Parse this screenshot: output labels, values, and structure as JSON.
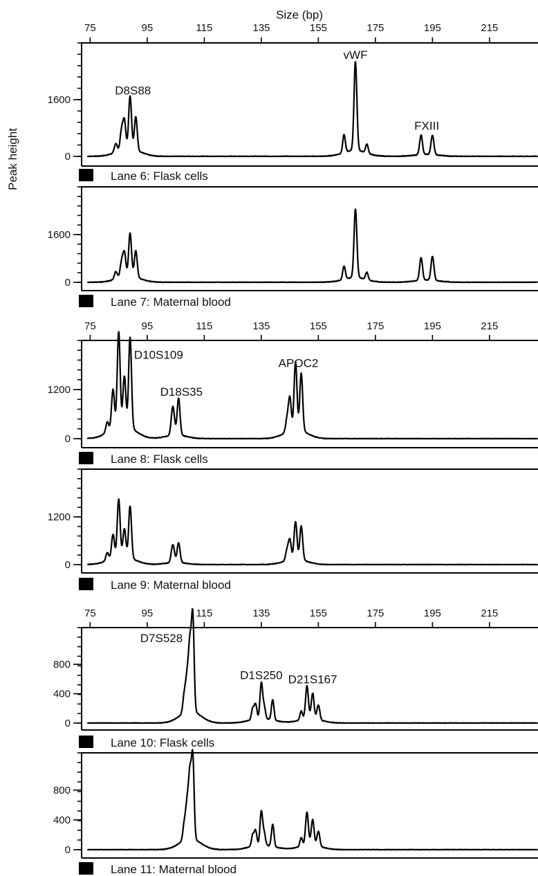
{
  "chart_data": {
    "type": "line",
    "title": "Size (bp)",
    "ylabel": "Peak height",
    "xlim": [
      72,
      232
    ],
    "x_ticks": [
      75,
      95,
      115,
      135,
      155,
      175,
      195,
      215
    ],
    "x_tick_labels": [
      "75",
      "95",
      "115",
      "135",
      "155",
      "175",
      "195",
      "215"
    ],
    "legend": "none",
    "panels": [
      {
        "lane": "Lane 6: Flask cells",
        "ylim": [
          0,
          3200
        ],
        "ytick_labels": [
          {
            "value": 0,
            "label": "0"
          },
          {
            "value": 1600,
            "label": "1600"
          }
        ],
        "show_top_axis": true,
        "peak_labels": [
          {
            "text": "D8S88",
            "x": 90,
            "y": 1750
          },
          {
            "text": "vWF",
            "x": 168,
            "y": 2750
          },
          {
            "text": "FXIII",
            "x": 193,
            "y": 750
          }
        ],
        "peaks": [
          {
            "x": 84,
            "h": 250,
            "w": 0.5
          },
          {
            "x": 86,
            "h": 550,
            "w": 0.5
          },
          {
            "x": 87,
            "h": 800,
            "w": 0.5
          },
          {
            "x": 89,
            "h": 1500,
            "w": 0.5
          },
          {
            "x": 91,
            "h": 950,
            "w": 0.5
          },
          {
            "x": 164,
            "h": 500,
            "w": 0.45
          },
          {
            "x": 168,
            "h": 2500,
            "w": 0.5
          },
          {
            "x": 172,
            "h": 250,
            "w": 0.45
          },
          {
            "x": 191,
            "h": 550,
            "w": 0.5
          },
          {
            "x": 195,
            "h": 550,
            "w": 0.5
          }
        ]
      },
      {
        "lane": "Lane 7: Maternal blood",
        "ylim": [
          0,
          3200
        ],
        "ytick_labels": [
          {
            "value": 0,
            "label": "0"
          },
          {
            "value": 1600,
            "label": "1600"
          }
        ],
        "show_top_axis": false,
        "peak_labels": [],
        "peaks": [
          {
            "x": 84,
            "h": 250,
            "w": 0.5
          },
          {
            "x": 86,
            "h": 500,
            "w": 0.5
          },
          {
            "x": 87,
            "h": 800,
            "w": 0.5
          },
          {
            "x": 89,
            "h": 1450,
            "w": 0.5
          },
          {
            "x": 91,
            "h": 900,
            "w": 0.5
          },
          {
            "x": 164,
            "h": 450,
            "w": 0.45
          },
          {
            "x": 168,
            "h": 2300,
            "w": 0.5
          },
          {
            "x": 172,
            "h": 250,
            "w": 0.45
          },
          {
            "x": 191,
            "h": 750,
            "w": 0.5
          },
          {
            "x": 195,
            "h": 800,
            "w": 0.5
          }
        ]
      },
      {
        "lane": "Lane 8: Flask cells",
        "ylim": [
          0,
          2400
        ],
        "ytick_labels": [
          {
            "value": 0,
            "label": "0"
          },
          {
            "value": 1200,
            "label": "1200"
          }
        ],
        "show_top_axis": true,
        "peak_labels": [
          {
            "text": "D10S109",
            "x": 99,
            "y": 1950
          },
          {
            "text": "D18S35",
            "x": 107,
            "y": 1050
          },
          {
            "text": "APOC2",
            "x": 148,
            "y": 1750
          }
        ],
        "peaks": [
          {
            "x": 81,
            "h": 250,
            "w": 0.5
          },
          {
            "x": 83,
            "h": 950,
            "w": 0.5
          },
          {
            "x": 85,
            "h": 2300,
            "w": 0.5
          },
          {
            "x": 87,
            "h": 1200,
            "w": 0.5
          },
          {
            "x": 89,
            "h": 2200,
            "w": 0.5
          },
          {
            "x": 104,
            "h": 700,
            "w": 0.55
          },
          {
            "x": 106,
            "h": 900,
            "w": 0.5
          },
          {
            "x": 144,
            "h": 300,
            "w": 0.5
          },
          {
            "x": 145,
            "h": 800,
            "w": 0.5
          },
          {
            "x": 147,
            "h": 1650,
            "w": 0.5
          },
          {
            "x": 149,
            "h": 1400,
            "w": 0.5
          }
        ]
      },
      {
        "lane": "Lane 9: Maternal blood",
        "ylim": [
          0,
          2400
        ],
        "ytick_labels": [
          {
            "value": 0,
            "label": "0"
          },
          {
            "value": 1200,
            "label": "1200"
          }
        ],
        "show_top_axis": false,
        "peak_labels": [],
        "peaks": [
          {
            "x": 81,
            "h": 200,
            "w": 0.5
          },
          {
            "x": 83,
            "h": 600,
            "w": 0.5
          },
          {
            "x": 85,
            "h": 1450,
            "w": 0.5
          },
          {
            "x": 87,
            "h": 700,
            "w": 0.5
          },
          {
            "x": 89,
            "h": 1300,
            "w": 0.5
          },
          {
            "x": 104,
            "h": 450,
            "w": 0.55
          },
          {
            "x": 106,
            "h": 500,
            "w": 0.5
          },
          {
            "x": 144,
            "h": 250,
            "w": 0.5
          },
          {
            "x": 145,
            "h": 500,
            "w": 0.5
          },
          {
            "x": 147,
            "h": 950,
            "w": 0.5
          },
          {
            "x": 149,
            "h": 850,
            "w": 0.5
          }
        ]
      },
      {
        "lane": "Lane 10: Flask cells",
        "ylim": [
          0,
          1300
        ],
        "ytick_labels": [
          {
            "value": 0,
            "label": "0"
          },
          {
            "value": 400,
            "label": "400"
          },
          {
            "value": 800,
            "label": "800"
          }
        ],
        "show_top_axis": true,
        "peak_labels": [
          {
            "text": "D7S528",
            "x": 100,
            "y": 1100
          },
          {
            "text": "D1S250",
            "x": 135,
            "y": 600
          },
          {
            "text": "D21S167",
            "x": 153,
            "y": 540
          }
        ],
        "peaks": [
          {
            "x": 108,
            "h": 250,
            "w": 0.5
          },
          {
            "x": 109,
            "h": 450,
            "w": 0.5
          },
          {
            "x": 110,
            "h": 900,
            "w": 0.5
          },
          {
            "x": 111,
            "h": 1250,
            "w": 0.45
          },
          {
            "x": 132,
            "h": 150,
            "w": 0.45
          },
          {
            "x": 133,
            "h": 200,
            "w": 0.45
          },
          {
            "x": 135,
            "h": 480,
            "w": 0.45
          },
          {
            "x": 136,
            "h": 160,
            "w": 0.45
          },
          {
            "x": 139,
            "h": 280,
            "w": 0.45
          },
          {
            "x": 149,
            "h": 120,
            "w": 0.45
          },
          {
            "x": 151,
            "h": 450,
            "w": 0.5
          },
          {
            "x": 153,
            "h": 350,
            "w": 0.5
          },
          {
            "x": 155,
            "h": 200,
            "w": 0.5
          }
        ]
      },
      {
        "lane": "Lane 11: Maternal blood",
        "ylim": [
          0,
          1300
        ],
        "ytick_labels": [
          {
            "value": 0,
            "label": "0"
          },
          {
            "value": 400,
            "label": "400"
          },
          {
            "value": 800,
            "label": "800"
          }
        ],
        "show_top_axis": false,
        "peak_labels": [],
        "peaks": [
          {
            "x": 108,
            "h": 220,
            "w": 0.5
          },
          {
            "x": 109,
            "h": 450,
            "w": 0.5
          },
          {
            "x": 110,
            "h": 850,
            "w": 0.5
          },
          {
            "x": 111,
            "h": 1050,
            "w": 0.45
          },
          {
            "x": 132,
            "h": 150,
            "w": 0.45
          },
          {
            "x": 133,
            "h": 200,
            "w": 0.45
          },
          {
            "x": 135,
            "h": 450,
            "w": 0.45
          },
          {
            "x": 136,
            "h": 160,
            "w": 0.45
          },
          {
            "x": 139,
            "h": 300,
            "w": 0.45
          },
          {
            "x": 149,
            "h": 120,
            "w": 0.45
          },
          {
            "x": 151,
            "h": 450,
            "w": 0.5
          },
          {
            "x": 153,
            "h": 350,
            "w": 0.5
          },
          {
            "x": 155,
            "h": 200,
            "w": 0.5
          }
        ]
      }
    ]
  }
}
